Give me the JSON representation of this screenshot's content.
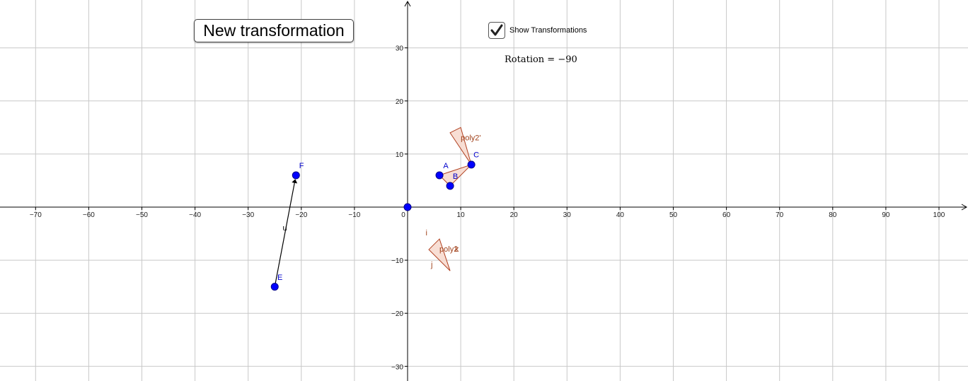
{
  "controls": {
    "new_button_label": "New transformation",
    "checkbox_label": "Show Transformations",
    "checkbox_checked": true,
    "rotation_label": "Rotation",
    "rotation_value": "−90"
  },
  "axes": {
    "x_ticks": [
      "−70",
      "−60",
      "−50",
      "−40",
      "−30",
      "−20",
      "−10",
      "0",
      "10",
      "20",
      "30",
      "40",
      "50",
      "60",
      "70",
      "80",
      "90",
      "100"
    ],
    "y_ticks": [
      "30",
      "20",
      "10",
      "−10",
      "−20",
      "−30"
    ],
    "x_range": [
      -77,
      105
    ],
    "y_range": [
      -32.5,
      39
    ],
    "grid_step": 10,
    "grid": true
  },
  "points": [
    {
      "name": "A",
      "x": 6,
      "y": 6
    },
    {
      "name": "B",
      "x": 8,
      "y": 4
    },
    {
      "name": "C",
      "x": 12,
      "y": 8
    },
    {
      "name": "E",
      "x": -25,
      "y": -15
    },
    {
      "name": "F",
      "x": -21,
      "y": 6
    },
    {
      "name": "",
      "x": 0,
      "y": 0
    }
  ],
  "vector": {
    "name": "u",
    "from": "E",
    "to": "F"
  },
  "polygons": [
    {
      "name": "poly2",
      "label": "poly2",
      "vertices": [
        [
          6,
          -6
        ],
        [
          4,
          -8
        ],
        [
          8,
          -12
        ]
      ]
    },
    {
      "name": "poly2'",
      "label": "poly2'",
      "vertices": [
        [
          8,
          14
        ],
        [
          10,
          15
        ],
        [
          12,
          8
        ]
      ]
    }
  ],
  "segment_labels": [
    "i",
    "j",
    "k"
  ],
  "colors": {
    "point": "#0000ff",
    "polygon_fill": "#f7d8cc",
    "polygon_stroke": "#b04020",
    "grid": "#c8c8c8",
    "axis": "#000000"
  }
}
